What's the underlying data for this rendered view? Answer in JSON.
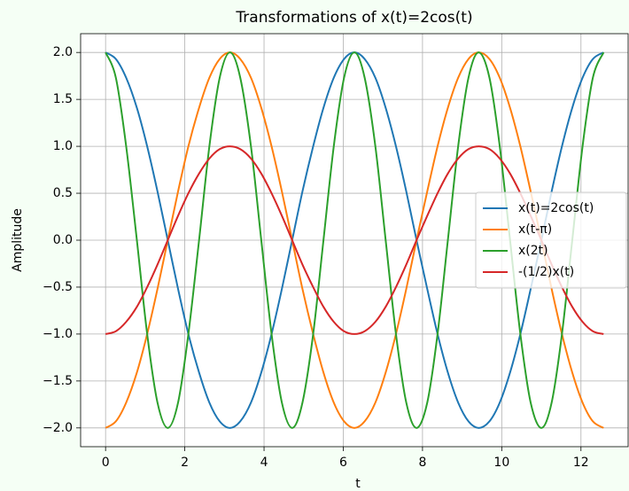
{
  "chart_data": {
    "type": "line",
    "title": "Transformations of x(t)=2cos(t)",
    "xlabel": "t",
    "ylabel": "Amplitude",
    "x": [
      0,
      0.26,
      0.52,
      0.79,
      1.05,
      1.31,
      1.57,
      1.83,
      2.09,
      2.36,
      2.62,
      2.88,
      3.14,
      3.4,
      3.67,
      3.93,
      4.19,
      4.45,
      4.71,
      4.97,
      5.24,
      5.5,
      5.76,
      6.02,
      6.28,
      6.54,
      6.81,
      7.07,
      7.33,
      7.59,
      7.85,
      8.12,
      8.38,
      8.64,
      8.9,
      9.16,
      9.42,
      9.69,
      9.95,
      10.21,
      10.47,
      10.73,
      11.0,
      11.26,
      11.52,
      11.78,
      12.04,
      12.3,
      12.57
    ],
    "series": [
      {
        "name": "x(t)=2cos(t)",
        "color": "#1f77b4",
        "values": [
          2,
          1.93,
          1.73,
          1.41,
          1,
          0.52,
          0,
          -0.52,
          -1,
          -1.41,
          -1.73,
          -1.93,
          -2,
          -1.93,
          -1.73,
          -1.41,
          -1,
          -0.52,
          0,
          0.52,
          1,
          1.41,
          1.73,
          1.93,
          2,
          1.93,
          1.73,
          1.41,
          1,
          0.52,
          0,
          -0.52,
          -1,
          -1.41,
          -1.73,
          -1.93,
          -2,
          -1.93,
          -1.73,
          -1.41,
          -1,
          -0.52,
          0,
          0.52,
          1,
          1.41,
          1.73,
          1.93,
          2
        ]
      },
      {
        "name": "x(t-π)",
        "color": "#ff7f0e",
        "values": [
          -2,
          -1.93,
          -1.73,
          -1.41,
          -1,
          -0.52,
          0,
          0.52,
          1,
          1.41,
          1.73,
          1.93,
          2,
          1.93,
          1.73,
          1.41,
          1,
          0.52,
          0,
          -0.52,
          -1,
          -1.41,
          -1.73,
          -1.93,
          -2,
          -1.93,
          -1.73,
          -1.41,
          -1,
          -0.52,
          0,
          0.52,
          1,
          1.41,
          1.73,
          1.93,
          2,
          1.93,
          1.73,
          1.41,
          1,
          0.52,
          0,
          -0.52,
          -1,
          -1.41,
          -1.73,
          -1.93,
          -2
        ]
      },
      {
        "name": "x(2t)",
        "color": "#2ca02c",
        "values": [
          2,
          1.73,
          1,
          0,
          -1,
          -1.73,
          -2,
          -1.73,
          -1,
          0,
          1,
          1.73,
          2,
          1.73,
          1,
          0,
          -1,
          -1.73,
          -2,
          -1.73,
          -1,
          0,
          1,
          1.73,
          2,
          1.73,
          1,
          0,
          -1,
          -1.73,
          -2,
          -1.73,
          -1,
          0,
          1,
          1.73,
          2,
          1.73,
          1,
          0,
          -1,
          -1.73,
          -2,
          -1.73,
          -1,
          0,
          1,
          1.73,
          2
        ]
      },
      {
        "name": "-(1/2)x(t)",
        "color": "#d62728",
        "values": [
          -1,
          -0.97,
          -0.87,
          -0.71,
          -0.5,
          -0.26,
          0,
          0.26,
          0.5,
          0.71,
          0.87,
          0.97,
          1,
          0.97,
          0.87,
          0.71,
          0.5,
          0.26,
          0,
          -0.26,
          -0.5,
          -0.71,
          -0.87,
          -0.97,
          -1,
          -0.97,
          -0.87,
          -0.71,
          -0.5,
          -0.26,
          0,
          0.26,
          0.5,
          0.71,
          0.87,
          0.97,
          1,
          0.97,
          0.87,
          0.71,
          0.5,
          0.26,
          0,
          -0.26,
          -0.5,
          -0.71,
          -0.87,
          -0.97,
          -1
        ]
      }
    ],
    "xlim": [
      -0.63,
      13.19
    ],
    "xticks": [
      0,
      2,
      4,
      6,
      8,
      10,
      12
    ],
    "ylim": [
      -2.2,
      2.2
    ],
    "yticks": [
      {
        "value": -2,
        "label": "−2.0"
      },
      {
        "value": -1.5,
        "label": "−1.5"
      },
      {
        "value": -1,
        "label": "−1.0"
      },
      {
        "value": -0.5,
        "label": "−0.5"
      },
      {
        "value": 0,
        "label": "0.0"
      },
      {
        "value": 0.5,
        "label": "0.5"
      },
      {
        "value": 1,
        "label": "1.0"
      },
      {
        "value": 1.5,
        "label": "1.5"
      },
      {
        "value": 2,
        "label": "2.0"
      }
    ],
    "grid": true,
    "legend": "center right"
  }
}
